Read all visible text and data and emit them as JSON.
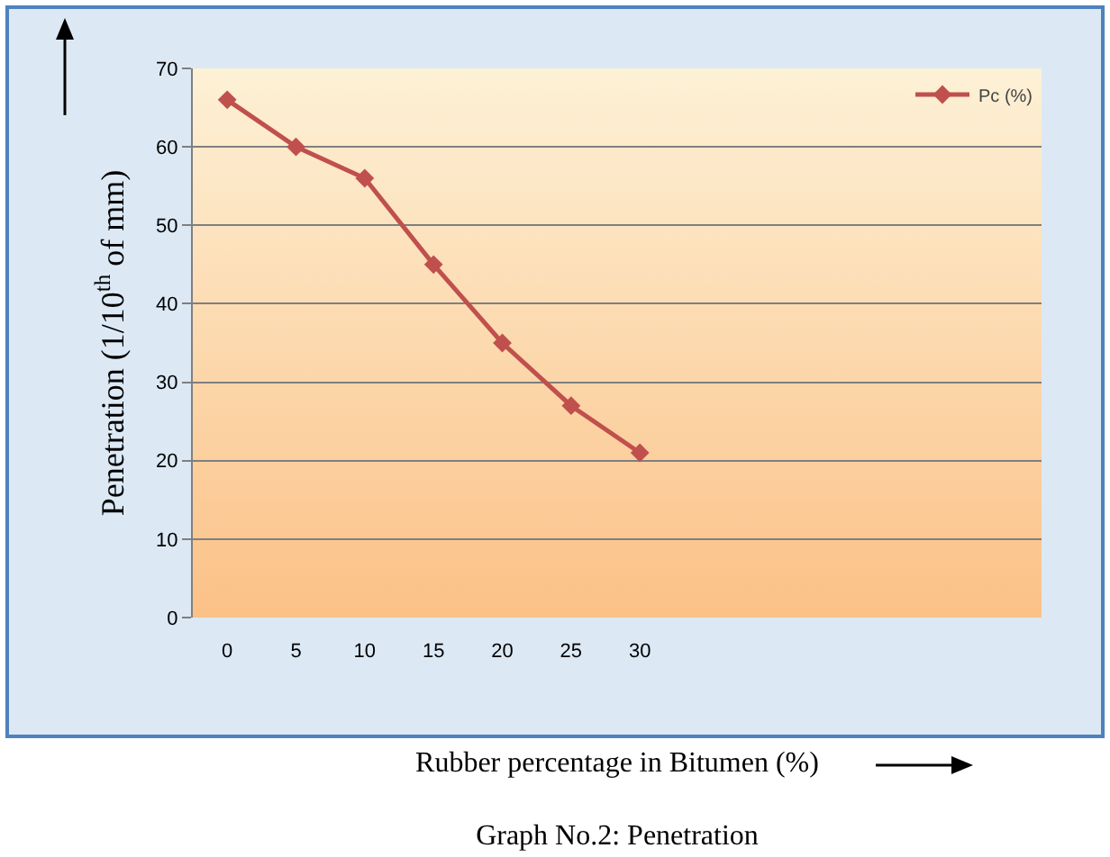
{
  "chart_data": {
    "type": "line",
    "title": "Graph No.2: Penetration",
    "xlabel": "Rubber percentage in Bitumen (%)",
    "ylabel": "Penetration (1/10$^{th}$ of mm)",
    "x": [
      0,
      5,
      10,
      15,
      20,
      25,
      30
    ],
    "series": [
      {
        "name": "Pc (%)",
        "color": "#c0504d",
        "values": [
          66,
          60,
          56,
          45,
          35,
          27,
          21
        ]
      }
    ],
    "xlim": [
      -2.5,
      59.2
    ],
    "xticks": [
      0,
      5,
      10,
      15,
      20,
      25,
      30
    ],
    "ylim": [
      0,
      70
    ],
    "yticks": [
      0,
      10,
      20,
      30,
      40,
      50,
      60,
      70
    ],
    "grid": "y",
    "legend": "top right",
    "marker": "diamond",
    "line_style": "solid"
  }
}
